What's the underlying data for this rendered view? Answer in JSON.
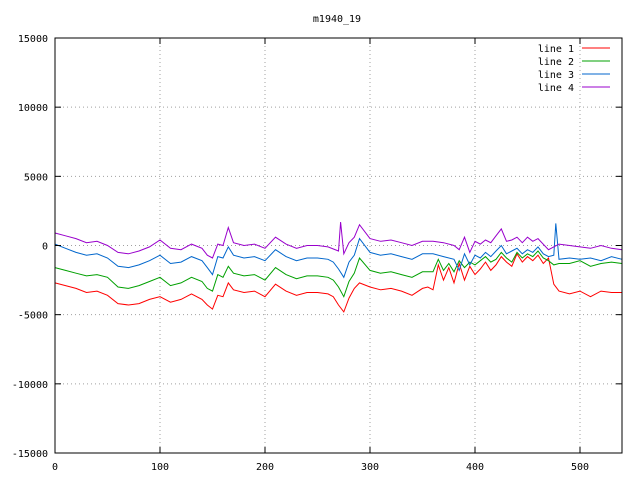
{
  "chart_data": {
    "type": "line",
    "title": "m1940_19",
    "xlabel": "",
    "ylabel": "",
    "xlim": [
      0,
      540
    ],
    "ylim": [
      -15000,
      15000
    ],
    "xticks": [
      0,
      100,
      200,
      300,
      400,
      500
    ],
    "yticks": [
      -15000,
      -10000,
      -5000,
      0,
      5000,
      10000,
      15000
    ],
    "grid": true,
    "legend_position": "top-right",
    "series": [
      {
        "name": "line 1",
        "color": "#ff0000",
        "x": [
          0,
          10,
          20,
          30,
          40,
          50,
          60,
          70,
          80,
          90,
          100,
          110,
          120,
          130,
          140,
          145,
          150,
          155,
          160,
          165,
          170,
          180,
          190,
          200,
          210,
          220,
          230,
          240,
          250,
          260,
          265,
          270,
          275,
          280,
          285,
          290,
          300,
          310,
          320,
          330,
          340,
          350,
          355,
          360,
          365,
          370,
          375,
          380,
          385,
          390,
          395,
          400,
          405,
          410,
          415,
          420,
          425,
          430,
          435,
          440,
          445,
          450,
          455,
          460,
          465,
          470,
          475,
          480,
          490,
          500,
          510,
          520,
          530,
          540
        ],
        "y": [
          -2700,
          -2900,
          -3100,
          -3400,
          -3300,
          -3600,
          -4200,
          -4300,
          -4200,
          -3900,
          -3700,
          -4100,
          -3900,
          -3500,
          -3900,
          -4300,
          -4600,
          -3600,
          -3700,
          -2700,
          -3200,
          -3400,
          -3300,
          -3700,
          -2800,
          -3300,
          -3600,
          -3400,
          -3400,
          -3500,
          -3700,
          -4300,
          -4800,
          -3800,
          -3100,
          -2700,
          -3000,
          -3200,
          -3100,
          -3300,
          -3600,
          -3100,
          -3000,
          -3200,
          -1400,
          -2500,
          -1600,
          -2700,
          -1300,
          -2500,
          -1500,
          -2100,
          -1700,
          -1200,
          -1800,
          -1400,
          -800,
          -1200,
          -1500,
          -600,
          -1200,
          -800,
          -1100,
          -700,
          -1300,
          -900,
          -2800,
          -3300,
          -3500,
          -3300,
          -3700,
          -3300,
          -3400,
          -3400
        ]
      },
      {
        "name": "line 2",
        "color": "#00a000",
        "x": [
          0,
          10,
          20,
          30,
          40,
          50,
          60,
          70,
          80,
          90,
          100,
          110,
          120,
          130,
          140,
          145,
          150,
          155,
          160,
          165,
          170,
          180,
          190,
          200,
          210,
          220,
          230,
          240,
          250,
          260,
          265,
          270,
          275,
          280,
          285,
          290,
          300,
          310,
          320,
          330,
          340,
          350,
          360,
          365,
          370,
          375,
          380,
          385,
          390,
          395,
          400,
          405,
          410,
          415,
          420,
          425,
          430,
          435,
          440,
          445,
          450,
          455,
          460,
          465,
          470,
          475,
          480,
          490,
          500,
          510,
          520,
          530,
          540
        ],
        "y": [
          -1600,
          -1800,
          -2000,
          -2200,
          -2100,
          -2300,
          -3000,
          -3100,
          -2900,
          -2600,
          -2300,
          -2900,
          -2700,
          -2300,
          -2600,
          -3100,
          -3300,
          -2100,
          -2300,
          -1500,
          -2000,
          -2200,
          -2100,
          -2500,
          -1600,
          -2100,
          -2400,
          -2200,
          -2200,
          -2300,
          -2500,
          -3000,
          -3700,
          -2600,
          -2000,
          -900,
          -1800,
          -2000,
          -1900,
          -2100,
          -2300,
          -1900,
          -1900,
          -1000,
          -1800,
          -1300,
          -1900,
          -1100,
          -1600,
          -1200,
          -1400,
          -1100,
          -800,
          -1200,
          -1000,
          -500,
          -900,
          -1200,
          -500,
          -900,
          -600,
          -800,
          -400,
          -900,
          -1100,
          -1400,
          -1300,
          -1300,
          -1100,
          -1500,
          -1300,
          -1200,
          -1300
        ]
      },
      {
        "name": "line 3",
        "color": "#0066cc",
        "x": [
          0,
          10,
          20,
          30,
          40,
          50,
          60,
          70,
          80,
          90,
          100,
          110,
          120,
          130,
          140,
          145,
          150,
          155,
          160,
          165,
          170,
          180,
          190,
          200,
          210,
          220,
          230,
          240,
          250,
          260,
          265,
          270,
          275,
          280,
          285,
          290,
          300,
          310,
          320,
          330,
          340,
          350,
          360,
          370,
          380,
          385,
          390,
          395,
          400,
          405,
          410,
          415,
          420,
          425,
          430,
          435,
          440,
          445,
          450,
          455,
          460,
          465,
          470,
          475,
          477,
          480,
          490,
          500,
          510,
          520,
          530,
          540
        ],
        "y": [
          100,
          -200,
          -500,
          -700,
          -600,
          -900,
          -1500,
          -1600,
          -1400,
          -1100,
          -700,
          -1300,
          -1200,
          -800,
          -1100,
          -1600,
          -2100,
          -800,
          -900,
          -100,
          -700,
          -900,
          -800,
          -1100,
          -300,
          -800,
          -1100,
          -900,
          -900,
          -1000,
          -1200,
          -1700,
          -2300,
          -1200,
          -700,
          500,
          -500,
          -700,
          -600,
          -800,
          -1000,
          -600,
          -600,
          -800,
          -1000,
          -1800,
          -600,
          -1400,
          -700,
          -900,
          -500,
          -800,
          -400,
          0,
          -600,
          -400,
          -200,
          -600,
          -300,
          -500,
          -100,
          -600,
          -800,
          -700,
          1600,
          -1000,
          -900,
          -1000,
          -900,
          -1100,
          -800,
          -1000
        ]
      },
      {
        "name": "line 4",
        "color": "#9900cc",
        "x": [
          0,
          10,
          20,
          30,
          40,
          50,
          60,
          70,
          80,
          90,
          100,
          110,
          120,
          130,
          140,
          145,
          150,
          155,
          160,
          165,
          170,
          180,
          190,
          200,
          210,
          220,
          230,
          240,
          250,
          260,
          270,
          272,
          275,
          280,
          285,
          290,
          300,
          310,
          320,
          330,
          340,
          350,
          360,
          370,
          380,
          385,
          390,
          395,
          400,
          405,
          410,
          415,
          420,
          425,
          430,
          435,
          440,
          445,
          450,
          455,
          460,
          470,
          480,
          490,
          500,
          510,
          520,
          530,
          540
        ],
        "y": [
          900,
          700,
          500,
          200,
          300,
          0,
          -500,
          -600,
          -400,
          -100,
          400,
          -200,
          -300,
          100,
          -200,
          -700,
          -900,
          100,
          0,
          1300,
          200,
          0,
          100,
          -200,
          600,
          100,
          -200,
          0,
          0,
          -100,
          -400,
          1700,
          -600,
          200,
          600,
          1500,
          500,
          300,
          400,
          200,
          0,
          300,
          300,
          200,
          0,
          -300,
          600,
          -500,
          300,
          100,
          400,
          200,
          700,
          1200,
          300,
          400,
          600,
          200,
          600,
          300,
          500,
          -300,
          100,
          0,
          -100,
          -200,
          0,
          -200,
          -300
        ]
      }
    ]
  }
}
